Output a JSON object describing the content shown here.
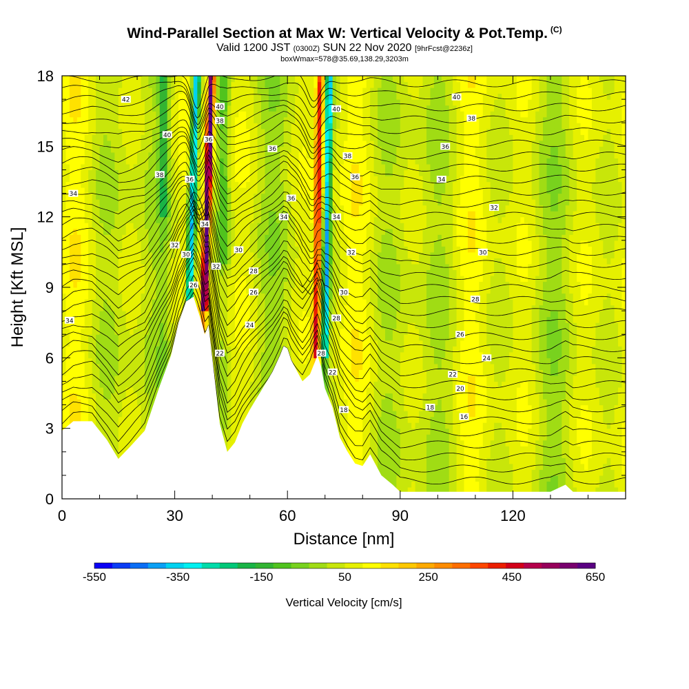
{
  "header": {
    "title": "Wind-Parallel Section at Max W: Vertical Velocity & Pot.Temp.",
    "title_mark": "(C)",
    "valid_prefix": "Valid 1200 JST",
    "valid_zulu": "(0300Z)",
    "valid_date": "SUN 22 Nov 2020",
    "forecast_info": "[9hrFcst@2236z]",
    "box_info": "boxWmax=578@35.69,138.29,3203m"
  },
  "chart_data": {
    "type": "heatmap",
    "xlabel": "Distance [nm]",
    "ylabel": "Height [Kft MSL]",
    "xlim": [
      0,
      150
    ],
    "ylim": [
      0,
      18
    ],
    "x_ticks": [
      0,
      30,
      60,
      90,
      120
    ],
    "y_ticks": [
      0,
      3,
      6,
      9,
      12,
      15,
      18
    ],
    "terrain_profile": {
      "x": [
        0,
        3,
        8,
        12,
        15,
        18,
        22,
        26,
        29,
        31,
        33,
        35,
        36,
        37,
        38,
        39,
        40,
        42,
        44,
        46,
        48,
        50,
        53,
        56,
        58,
        59,
        60,
        61,
        62,
        64,
        66,
        68,
        69,
        70,
        72,
        74,
        76,
        78,
        80,
        82,
        85,
        88,
        90,
        95,
        100,
        110,
        120,
        130,
        134,
        136,
        140,
        150
      ],
      "y": [
        2.9,
        3.3,
        3.3,
        2.5,
        1.7,
        2.2,
        2.9,
        4.8,
        6.1,
        7.5,
        8.4,
        8.6,
        8.1,
        7.6,
        7.0,
        7.4,
        6.0,
        3.2,
        2.0,
        2.4,
        3.2,
        3.8,
        4.6,
        5.4,
        6.1,
        6.5,
        6.4,
        5.9,
        5.6,
        5.0,
        5.3,
        6.1,
        5.6,
        4.7,
        3.9,
        2.6,
        2.0,
        1.5,
        1.4,
        1.9,
        1.0,
        0.6,
        0.3,
        0.3,
        0.3,
        0.3,
        0.3,
        0.3,
        0.6,
        0.3,
        0.3,
        0.3
      ]
    },
    "theta_contour_labels": [
      {
        "value": "42",
        "x": 17,
        "y": 17.0
      },
      {
        "value": "40",
        "x": 28,
        "y": 15.5
      },
      {
        "value": "38",
        "x": 26,
        "y": 13.8
      },
      {
        "value": "34",
        "x": 3,
        "y": 13.0
      },
      {
        "value": "40",
        "x": 42,
        "y": 16.7
      },
      {
        "value": "38",
        "x": 42,
        "y": 16.1
      },
      {
        "value": "36",
        "x": 39,
        "y": 15.3
      },
      {
        "value": "36",
        "x": 34,
        "y": 13.6
      },
      {
        "value": "34",
        "x": 38,
        "y": 11.7
      },
      {
        "value": "32",
        "x": 30,
        "y": 10.8
      },
      {
        "value": "30",
        "x": 33,
        "y": 10.4
      },
      {
        "value": "32",
        "x": 41,
        "y": 9.9
      },
      {
        "value": "30",
        "x": 47,
        "y": 10.6
      },
      {
        "value": "28",
        "x": 51,
        "y": 9.7
      },
      {
        "value": "26",
        "x": 51,
        "y": 8.8
      },
      {
        "value": "26",
        "x": 35,
        "y": 9.1
      },
      {
        "value": "24",
        "x": 50,
        "y": 7.4
      },
      {
        "value": "22",
        "x": 42,
        "y": 6.2
      },
      {
        "value": "36",
        "x": 56,
        "y": 14.9
      },
      {
        "value": "36",
        "x": 61,
        "y": 12.8
      },
      {
        "value": "34",
        "x": 59,
        "y": 12.0
      },
      {
        "value": "40",
        "x": 73,
        "y": 16.6
      },
      {
        "value": "38",
        "x": 76,
        "y": 14.6
      },
      {
        "value": "36",
        "x": 78,
        "y": 13.7
      },
      {
        "value": "34",
        "x": 73,
        "y": 12.0
      },
      {
        "value": "32",
        "x": 77,
        "y": 10.5
      },
      {
        "value": "30",
        "x": 75,
        "y": 8.8
      },
      {
        "value": "28",
        "x": 73,
        "y": 7.7
      },
      {
        "value": "28",
        "x": 69,
        "y": 6.2
      },
      {
        "value": "22",
        "x": 72,
        "y": 5.4
      },
      {
        "value": "18",
        "x": 75,
        "y": 3.8
      },
      {
        "value": "40",
        "x": 105,
        "y": 17.1
      },
      {
        "value": "38",
        "x": 109,
        "y": 16.2
      },
      {
        "value": "36",
        "x": 102,
        "y": 15.0
      },
      {
        "value": "34",
        "x": 101,
        "y": 13.6
      },
      {
        "value": "32",
        "x": 115,
        "y": 12.4
      },
      {
        "value": "30",
        "x": 112,
        "y": 10.5
      },
      {
        "value": "28",
        "x": 110,
        "y": 8.5
      },
      {
        "value": "26",
        "x": 106,
        "y": 7.0
      },
      {
        "value": "24",
        "x": 113,
        "y": 6.0
      },
      {
        "value": "22",
        "x": 104,
        "y": 5.3
      },
      {
        "value": "20",
        "x": 106,
        "y": 4.7
      },
      {
        "value": "18",
        "x": 98,
        "y": 3.9
      },
      {
        "value": "16",
        "x": 107,
        "y": 3.5
      },
      {
        "value": "34",
        "x": 2,
        "y": 7.6
      }
    ],
    "colorbar": {
      "label": "Vertical Velocity [cm/s]",
      "min": -550,
      "max": 650,
      "step": 50,
      "tick_values": [
        -550,
        -350,
        -150,
        50,
        250,
        450,
        650
      ],
      "tick_labels": [
        "-550",
        "-350",
        "-150",
        "50",
        "250",
        "450",
        "650"
      ],
      "colors": [
        "#0a00f5",
        "#0a3cf5",
        "#0a6ef5",
        "#0aa0f5",
        "#00d2f0",
        "#00f0f0",
        "#00dcaa",
        "#00c878",
        "#19b446",
        "#32b432",
        "#50c31e",
        "#78d21e",
        "#a0dc14",
        "#c8e60a",
        "#e6f000",
        "#ffff00",
        "#ffe100",
        "#ffc800",
        "#ffaa00",
        "#ff8c00",
        "#ff6e00",
        "#ff4600",
        "#eb1e00",
        "#d20019",
        "#b4004b",
        "#96005a",
        "#78006e",
        "#5a0082"
      ]
    }
  }
}
